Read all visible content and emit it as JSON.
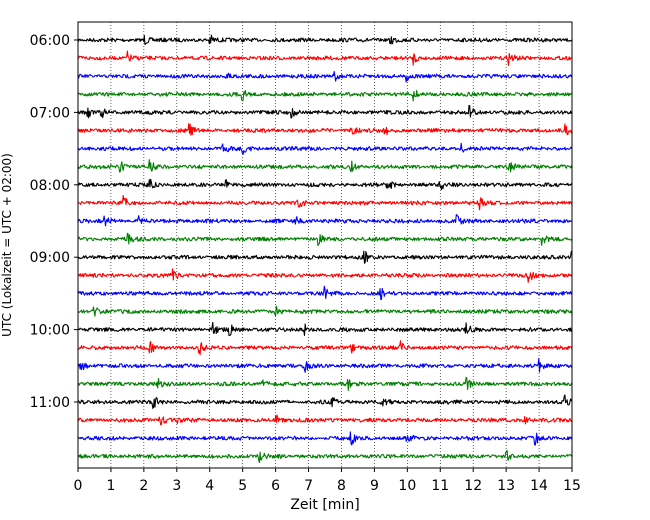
{
  "chart_data": {
    "type": "line",
    "title": "",
    "xlabel": "Zeit  [min]",
    "ylabel": "UTC (Lokalzeit = UTC + 02:00)",
    "xlim": [
      0,
      15
    ],
    "x_ticks": [
      "0",
      "1",
      "2",
      "3",
      "4",
      "5",
      "6",
      "7",
      "8",
      "9",
      "10",
      "11",
      "12",
      "13",
      "14",
      "15"
    ],
    "y_tick_labels": [
      "06:00",
      "07:00",
      "08:00",
      "09:00",
      "10:00",
      "11:00"
    ],
    "grid": "vertical dotted at each minute",
    "trace_colors": [
      "#000000",
      "#ff0000",
      "#0000ff",
      "#008000"
    ],
    "row_start_utc": [
      "06:00",
      "06:15",
      "06:30",
      "06:45",
      "07:00",
      "07:15",
      "07:30",
      "07:45",
      "08:00",
      "08:15",
      "08:30",
      "08:45",
      "09:00",
      "09:15",
      "09:30",
      "09:45",
      "10:00",
      "10:15",
      "10:30",
      "10:45",
      "11:00",
      "11:15",
      "11:30",
      "11:45"
    ],
    "events_approx_min": [
      [
        2.0,
        4.0,
        9.5
      ],
      [
        1.5,
        10.2,
        13.1
      ],
      [
        4.5,
        7.8,
        10.0
      ],
      [
        5.0,
        10.2
      ],
      [
        0.3,
        0.7,
        6.5,
        11.9
      ],
      [
        3.4,
        8.3,
        9.3,
        14.8
      ],
      [
        4.4,
        5.0,
        11.6
      ],
      [
        1.3,
        2.2,
        8.3,
        13.1
      ],
      [
        2.2,
        4.5,
        9.4,
        11.0
      ],
      [
        1.4,
        6.7,
        12.2
      ],
      [
        0.8,
        1.8,
        6.6,
        11.5
      ],
      [
        1.5,
        7.3,
        14.1
      ],
      [
        8.7,
        15.0
      ],
      [
        2.9,
        13.7
      ],
      [
        7.5,
        9.2
      ],
      [
        0.5,
        6.0
      ],
      [
        4.1,
        4.6,
        6.9,
        11.8
      ],
      [
        2.2,
        3.7,
        8.3,
        9.8
      ],
      [
        0.1,
        6.9,
        14.0
      ],
      [
        2.4,
        5.6,
        8.2,
        11.8
      ],
      [
        2.3,
        7.7,
        9.2,
        14.8
      ],
      [
        2.5,
        3.0,
        6.0,
        13.5
      ],
      [
        8.3,
        10.0,
        13.9
      ],
      [
        5.5,
        13.0
      ]
    ]
  }
}
